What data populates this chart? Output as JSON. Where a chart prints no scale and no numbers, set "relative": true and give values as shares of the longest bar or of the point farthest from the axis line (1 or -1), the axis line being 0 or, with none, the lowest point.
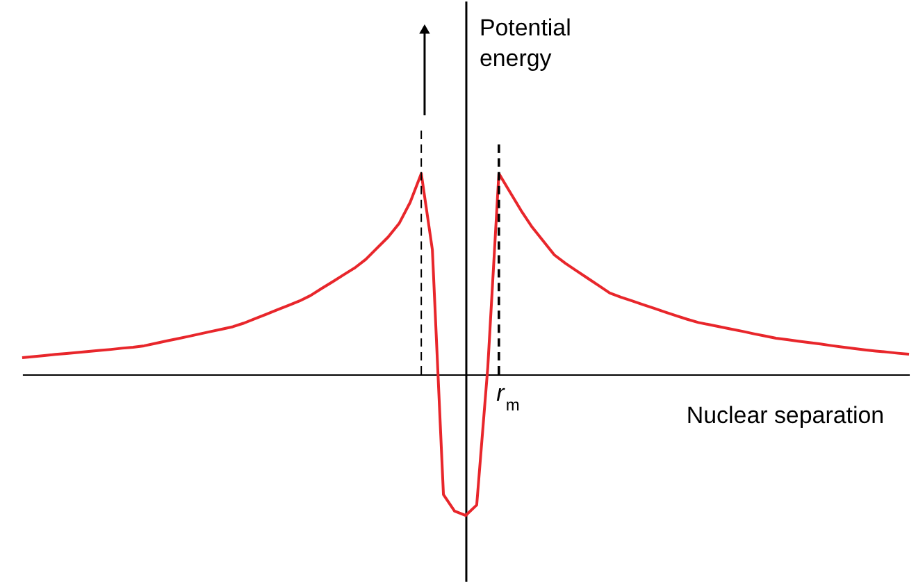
{
  "chart_data": {
    "type": "line",
    "relative": true,
    "xlabel": "Nuclear separation",
    "ylabel": "Potential energy",
    "categories": [
      null,
      null,
      null,
      null,
      null,
      null,
      null,
      null,
      null,
      null,
      null,
      null,
      null,
      null,
      null,
      null,
      null,
      null,
      null,
      null,
      null,
      null,
      null,
      null,
      null,
      null,
      null,
      null,
      null,
      null,
      null,
      null,
      null,
      null,
      null,
      null,
      null,
      null,
      null,
      null,
      null,
      null,
      null,
      null,
      null,
      null,
      null,
      null,
      null,
      null,
      null,
      null,
      null,
      null,
      null,
      null,
      null,
      null,
      null,
      null,
      null,
      null,
      null,
      null,
      null,
      null,
      null,
      null,
      null,
      null,
      null,
      null,
      null,
      null,
      null,
      null,
      null,
      null,
      null,
      null,
      null
    ],
    "series": [
      {
        "color": "#e8262b",
        "values": [
          0.083,
          0.088,
          0.093,
          0.099,
          0.104,
          0.109,
          0.114,
          0.119,
          0.124,
          0.13,
          0.135,
          0.142,
          0.154,
          0.166,
          0.177,
          0.189,
          0.201,
          0.213,
          0.225,
          0.237,
          0.255,
          0.277,
          0.299,
          0.321,
          0.343,
          0.365,
          0.392,
          0.427,
          0.461,
          0.496,
          0.53,
          0.573,
          0.628,
          0.683,
          0.751,
          0.857,
          1.0,
          0.621,
          -0.599,
          -0.681,
          -0.703,
          -0.651,
          0.035,
          1.0,
          0.908,
          0.816,
          0.733,
          0.664,
          0.595,
          0.553,
          0.516,
          0.479,
          0.442,
          0.405,
          0.384,
          0.366,
          0.347,
          0.329,
          0.31,
          0.292,
          0.274,
          0.258,
          0.247,
          0.236,
          0.225,
          0.214,
          0.202,
          0.191,
          0.18,
          0.173,
          0.165,
          0.158,
          0.151,
          0.143,
          0.136,
          0.129,
          0.122,
          0.116,
          0.111,
          0.105,
          0.1
        ]
      }
    ],
    "annotations": [
      "r$_{m}$"
    ],
    "tick_labels": false,
    "marker": "none",
    "line_style": "solid",
    "grid": false
  }
}
